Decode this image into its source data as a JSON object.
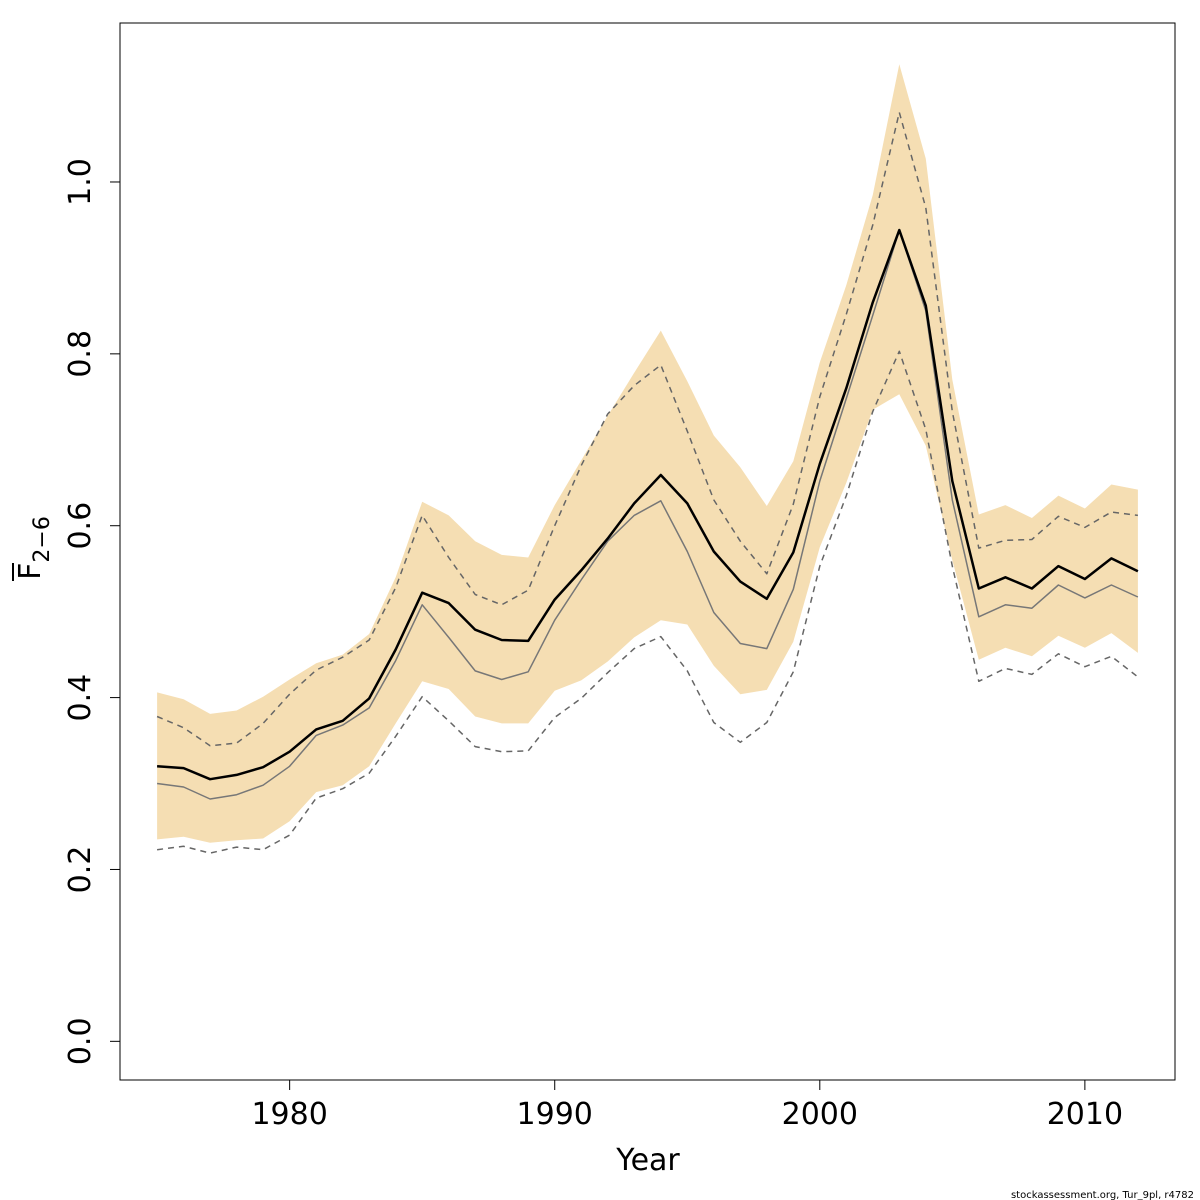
{
  "chart_data": {
    "type": "line",
    "xlabel": "Year",
    "ylabel_main": "F",
    "ylabel_sub": "2−6",
    "footer": "stockassessment.org, Tur_9pl, r4782",
    "xlim": [
      1973.6,
      2013.4
    ],
    "ylim": [
      -0.045,
      1.185
    ],
    "x_ticks": [
      1980,
      1990,
      2000,
      2010
    ],
    "x_tick_labels": [
      "1980",
      "1990",
      "2000",
      "2010"
    ],
    "y_ticks": [
      0.0,
      0.2,
      0.4,
      0.6,
      0.8,
      1.0
    ],
    "y_tick_labels": [
      "0.0",
      "0.2",
      "0.4",
      "0.6",
      "0.8",
      "1.0"
    ],
    "colors": {
      "band": "#f5deb3",
      "estimate": "#000000",
      "secondary": "#777777",
      "interval": "#666666"
    },
    "x": [
      1975,
      1976,
      1977,
      1978,
      1979,
      1980,
      1981,
      1982,
      1983,
      1984,
      1985,
      1986,
      1987,
      1988,
      1989,
      1990,
      1991,
      1992,
      1993,
      1994,
      1995,
      1996,
      1997,
      1998,
      1999,
      2000,
      2001,
      2002,
      2003,
      2004,
      2005,
      2006,
      2007,
      2008,
      2009,
      2010,
      2011,
      2012
    ],
    "band_upper": [
      0.406,
      0.398,
      0.381,
      0.385,
      0.401,
      0.421,
      0.44,
      0.45,
      0.474,
      0.54,
      0.628,
      0.612,
      0.582,
      0.566,
      0.563,
      0.624,
      0.676,
      0.728,
      0.778,
      0.827,
      0.768,
      0.705,
      0.668,
      0.623,
      0.675,
      0.79,
      0.88,
      0.985,
      1.137,
      1.027,
      0.77,
      0.613,
      0.624,
      0.609,
      0.635,
      0.62,
      0.648,
      0.642
    ],
    "band_lower": [
      0.235,
      0.238,
      0.231,
      0.234,
      0.236,
      0.256,
      0.29,
      0.298,
      0.32,
      0.37,
      0.419,
      0.41,
      0.378,
      0.37,
      0.37,
      0.408,
      0.42,
      0.442,
      0.47,
      0.49,
      0.485,
      0.437,
      0.404,
      0.409,
      0.465,
      0.575,
      0.65,
      0.735,
      0.753,
      0.693,
      0.56,
      0.444,
      0.458,
      0.448,
      0.472,
      0.458,
      0.475,
      0.452
    ],
    "series": [
      {
        "values": [
          0.32,
          0.318,
          0.305,
          0.31,
          0.319,
          0.337,
          0.363,
          0.373,
          0.399,
          0.456,
          0.522,
          0.51,
          0.479,
          0.467,
          0.466,
          0.514,
          0.548,
          0.585,
          0.626,
          0.659,
          0.626,
          0.57,
          0.535,
          0.515,
          0.569,
          0.672,
          0.76,
          0.86,
          0.944,
          0.856,
          0.652,
          0.527,
          0.54,
          0.527,
          0.553,
          0.538,
          0.562,
          0.547
        ],
        "style": "solid-thick"
      },
      {
        "values": [
          0.3,
          0.296,
          0.282,
          0.287,
          0.298,
          0.32,
          0.356,
          0.368,
          0.388,
          0.443,
          0.508,
          0.47,
          0.431,
          0.421,
          0.43,
          0.49,
          0.537,
          0.582,
          0.612,
          0.629,
          0.57,
          0.499,
          0.463,
          0.457,
          0.526,
          0.652,
          0.748,
          0.845,
          0.944,
          0.85,
          0.63,
          0.494,
          0.508,
          0.504,
          0.531,
          0.516,
          0.531,
          0.517
        ],
        "style": "solid-thin"
      },
      {
        "values": [
          0.378,
          0.365,
          0.344,
          0.347,
          0.37,
          0.404,
          0.432,
          0.447,
          0.467,
          0.528,
          0.612,
          0.563,
          0.52,
          0.508,
          0.525,
          0.6,
          0.67,
          0.73,
          0.763,
          0.787,
          0.71,
          0.63,
          0.582,
          0.544,
          0.625,
          0.75,
          0.846,
          0.95,
          1.081,
          0.97,
          0.733,
          0.574,
          0.583,
          0.584,
          0.611,
          0.598,
          0.616,
          0.612
        ],
        "style": "dashed"
      },
      {
        "values": [
          0.223,
          0.227,
          0.219,
          0.226,
          0.223,
          0.24,
          0.283,
          0.294,
          0.312,
          0.355,
          0.401,
          0.373,
          0.343,
          0.337,
          0.338,
          0.377,
          0.399,
          0.429,
          0.457,
          0.471,
          0.431,
          0.371,
          0.348,
          0.371,
          0.43,
          0.553,
          0.635,
          0.733,
          0.803,
          0.712,
          0.553,
          0.419,
          0.434,
          0.427,
          0.451,
          0.436,
          0.448,
          0.424
        ],
        "style": "dashed"
      }
    ]
  }
}
